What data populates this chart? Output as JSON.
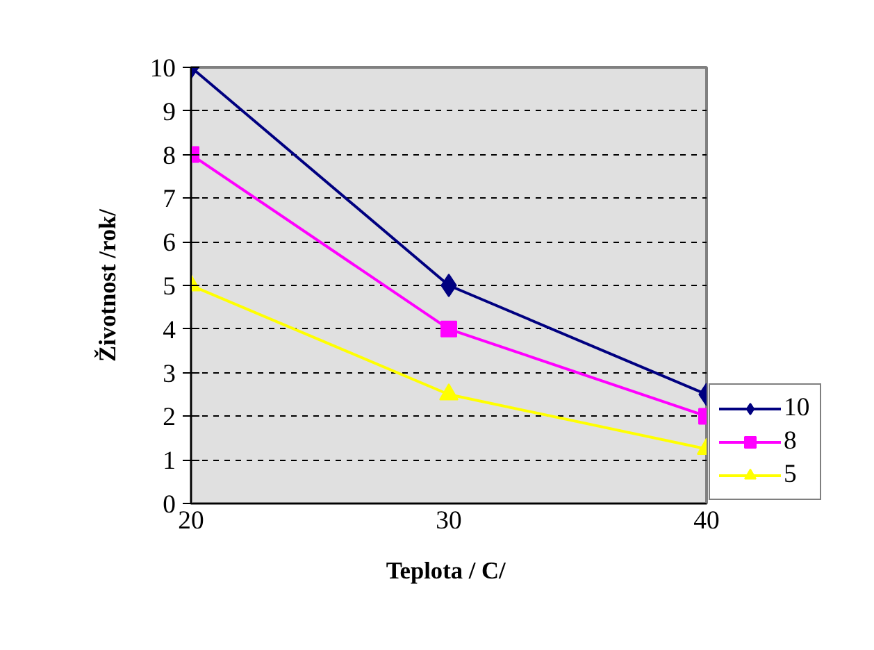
{
  "chart_data": {
    "type": "line",
    "xlabel": "Teplota /  C/",
    "ylabel": "Životnost /rok/",
    "x": [
      20,
      30,
      40
    ],
    "xlim": [
      20,
      40
    ],
    "xticks": [
      20,
      30,
      40
    ],
    "ylim": [
      0,
      10
    ],
    "yticks": [
      0,
      1,
      2,
      3,
      4,
      5,
      6,
      7,
      8,
      9,
      10
    ],
    "grid": "y",
    "legend": "bottom right",
    "series": [
      {
        "name": "10",
        "color": "#000080",
        "marker": "diamond",
        "values": [
          10,
          5,
          2.5
        ]
      },
      {
        "name": "8",
        "color": "#ff00ff",
        "marker": "square",
        "values": [
          8,
          4,
          2
        ]
      },
      {
        "name": "5",
        "color": "#ffff00",
        "marker": "triangle",
        "values": [
          5,
          2.5,
          1.25
        ]
      }
    ]
  }
}
